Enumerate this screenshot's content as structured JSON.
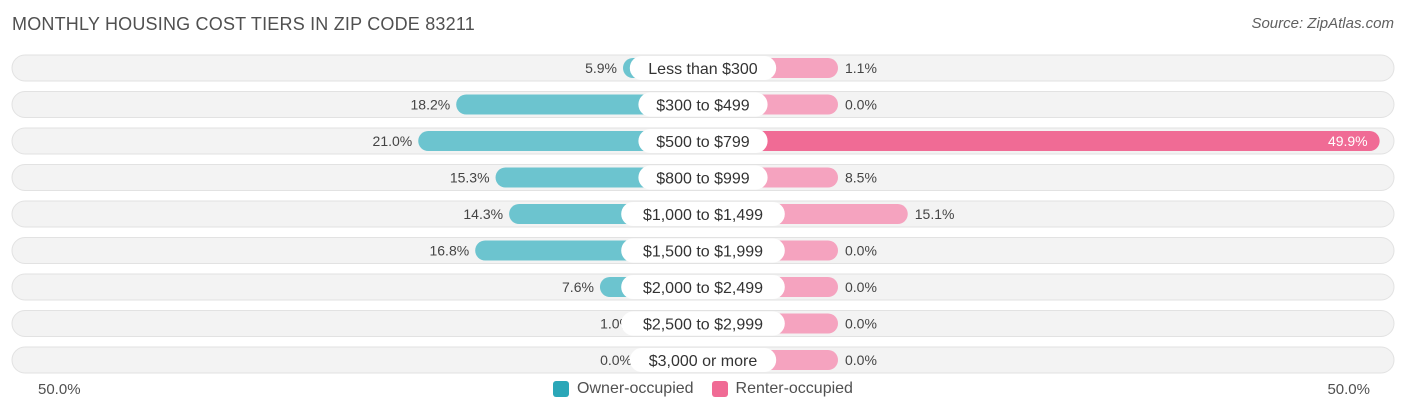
{
  "header": {
    "title": "MONTHLY HOUSING COST TIERS IN ZIP CODE 83211",
    "source": "Source: ZipAtlas.com"
  },
  "axis": {
    "left_label": "50.0%",
    "right_label": "50.0%"
  },
  "legend": {
    "owner_label": "Owner-occupied",
    "renter_label": "Renter-occupied"
  },
  "colors": {
    "owner": "#2ba7b8",
    "owner_light": "#6cc4cf",
    "renter": "#f06b95",
    "renter_light": "#f5a3bf",
    "row_bg": "#efefef"
  },
  "chart_data": {
    "type": "bar",
    "orientation": "diverging-horizontal",
    "title": "MONTHLY HOUSING COST TIERS IN ZIP CODE 83211",
    "xlim": [
      -50,
      50
    ],
    "categories": [
      "Less than $300",
      "$300 to $499",
      "$500 to $799",
      "$800 to $999",
      "$1,000 to $1,499",
      "$1,500 to $1,999",
      "$2,000 to $2,499",
      "$2,500 to $2,999",
      "$3,000 or more"
    ],
    "series": [
      {
        "name": "Owner-occupied",
        "values": [
          5.9,
          18.2,
          21.0,
          15.3,
          14.3,
          16.8,
          7.6,
          1.0,
          0.0
        ],
        "labels": [
          "5.9%",
          "18.2%",
          "21.0%",
          "15.3%",
          "14.3%",
          "16.8%",
          "7.6%",
          "1.0%",
          "0.0%"
        ]
      },
      {
        "name": "Renter-occupied",
        "values": [
          1.1,
          0.0,
          49.9,
          8.5,
          15.1,
          0.0,
          0.0,
          0.0,
          0.0
        ],
        "labels": [
          "1.1%",
          "0.0%",
          "49.9%",
          "8.5%",
          "15.1%",
          "0.0%",
          "0.0%",
          "0.0%",
          "0.0%"
        ]
      }
    ],
    "legend_position": "bottom-center"
  }
}
